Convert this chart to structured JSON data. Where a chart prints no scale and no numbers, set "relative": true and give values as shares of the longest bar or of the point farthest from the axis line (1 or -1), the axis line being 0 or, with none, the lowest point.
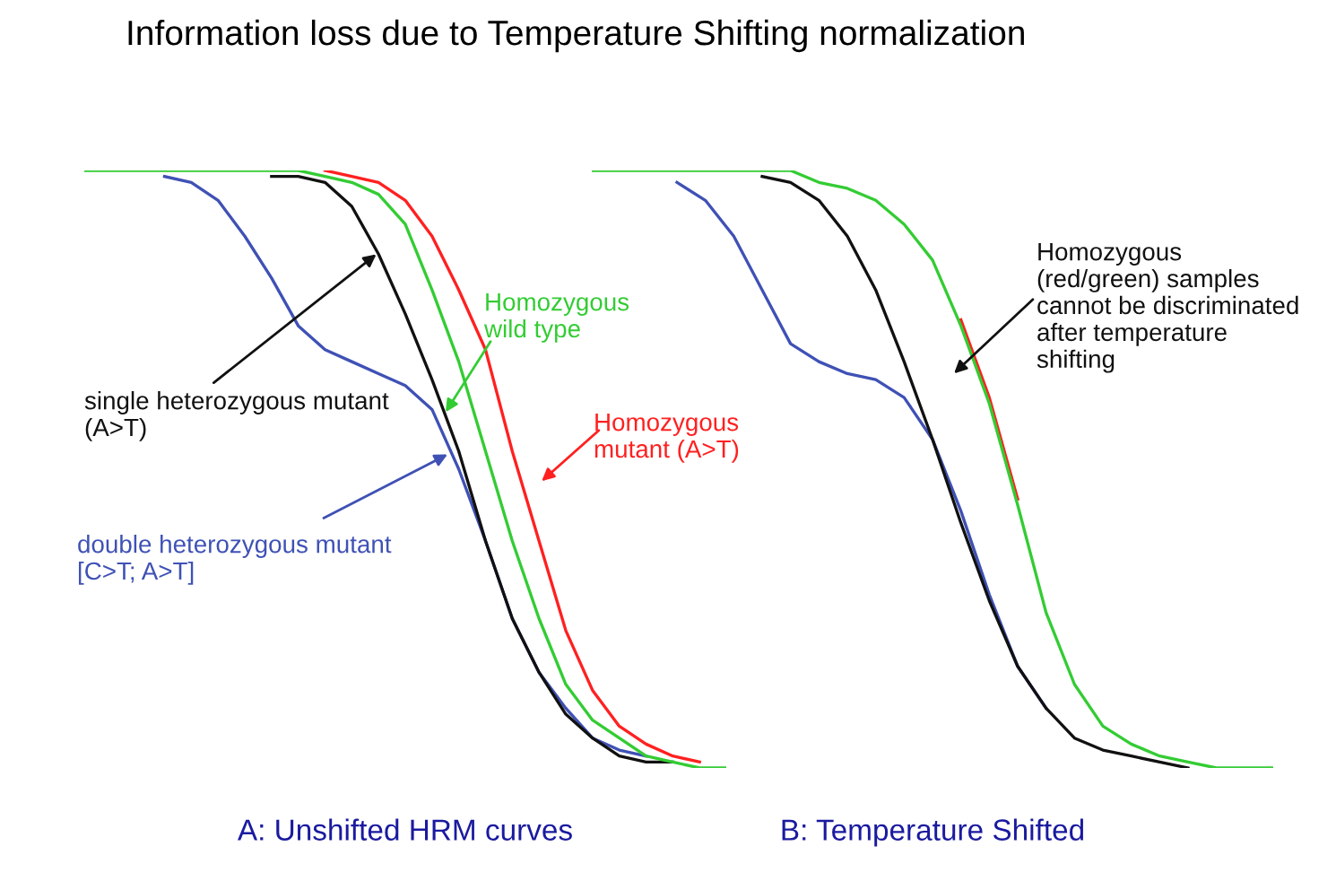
{
  "chart_data": [
    {
      "type": "line",
      "relative": true,
      "title": "Information loss due to Temperature Shifting normalization",
      "xlabel": "A: Unshifted HRM curves",
      "categories": [
        null,
        null,
        null,
        null,
        null,
        null,
        null,
        null,
        null,
        null,
        null,
        null,
        null,
        null,
        null,
        null,
        null,
        null,
        null,
        null,
        null,
        null,
        null,
        null,
        null
      ],
      "series": [
        {
          "color": "#3f51b5",
          "values": [
            null,
            null,
            null,
            0.99,
            0.98,
            0.95,
            0.89,
            0.82,
            0.74,
            0.7,
            0.68,
            0.66,
            0.64,
            0.6,
            0.5,
            0.38,
            0.25,
            0.16,
            0.1,
            0.05,
            0.03,
            0.02,
            null,
            null,
            null
          ]
        },
        {
          "color": "#111111",
          "values": [
            null,
            null,
            null,
            null,
            null,
            null,
            null,
            0.99,
            0.99,
            0.98,
            0.94,
            0.86,
            0.76,
            0.65,
            0.53,
            0.38,
            0.25,
            0.16,
            0.09,
            0.05,
            0.02,
            0.01,
            0.01,
            null,
            null
          ]
        },
        {
          "color": "#ff2020",
          "values": [
            null,
            null,
            null,
            null,
            null,
            null,
            null,
            null,
            null,
            1,
            0.99,
            0.98,
            0.95,
            0.89,
            0.8,
            0.7,
            0.53,
            0.38,
            0.23,
            0.13,
            0.07,
            0.04,
            0.02,
            0.01,
            null
          ]
        },
        {
          "color": "#33cc33",
          "values": [
            1,
            1,
            1,
            1,
            1,
            1,
            1,
            1,
            1,
            0.99,
            0.98,
            0.96,
            0.91,
            0.8,
            0.68,
            0.53,
            0.38,
            0.25,
            0.14,
            0.08,
            0.05,
            0.02,
            0.01,
            0,
            0
          ]
        }
      ],
      "annotations": [
        "Homozygous\nwild type",
        "Homozygous\nmutant (A>T)",
        "single heterozygous mutant\n(A>T)",
        "double heterozygous mutant\n[C>T; A>T]"
      ]
    },
    {
      "type": "line",
      "relative": true,
      "xlabel": "B: Temperature Shifted",
      "categories": [
        null,
        null,
        null,
        null,
        null,
        null,
        null,
        null,
        null,
        null,
        null,
        null,
        null,
        null,
        null,
        null,
        null,
        null,
        null,
        null,
        null,
        null,
        null,
        null,
        null
      ],
      "series": [
        {
          "color": "#3f51b5",
          "values": [
            null,
            null,
            null,
            0.98,
            0.95,
            0.89,
            0.8,
            0.71,
            0.68,
            0.66,
            0.65,
            0.62,
            0.55,
            0.43,
            0.29,
            0.17,
            0.1,
            null,
            null,
            null,
            null,
            null,
            null,
            null,
            null
          ]
        },
        {
          "color": "#111111",
          "values": [
            null,
            null,
            null,
            null,
            null,
            null,
            0.99,
            0.98,
            0.95,
            0.89,
            0.8,
            0.68,
            0.55,
            0.41,
            0.28,
            0.17,
            0.1,
            0.05,
            0.03,
            0.02,
            0.01,
            0,
            null,
            null,
            null
          ]
        },
        {
          "color": "#ff2020",
          "values": [
            null,
            null,
            null,
            null,
            null,
            null,
            null,
            null,
            null,
            null,
            null,
            null,
            null,
            0.75,
            0.62,
            0.45,
            null,
            null,
            null,
            null,
            null,
            null,
            null,
            null,
            null
          ]
        },
        {
          "color": "#33cc33",
          "values": [
            1,
            1,
            1,
            1,
            1,
            1,
            1,
            1,
            0.98,
            0.97,
            0.95,
            0.91,
            0.85,
            0.74,
            0.61,
            0.44,
            0.26,
            0.14,
            0.07,
            0.04,
            0.02,
            0.01,
            0,
            0,
            0
          ]
        }
      ],
      "annotations": [
        "Homozygous\n(red/green) samples\ncannot be discriminated\nafter temperature\nshifting"
      ]
    }
  ]
}
